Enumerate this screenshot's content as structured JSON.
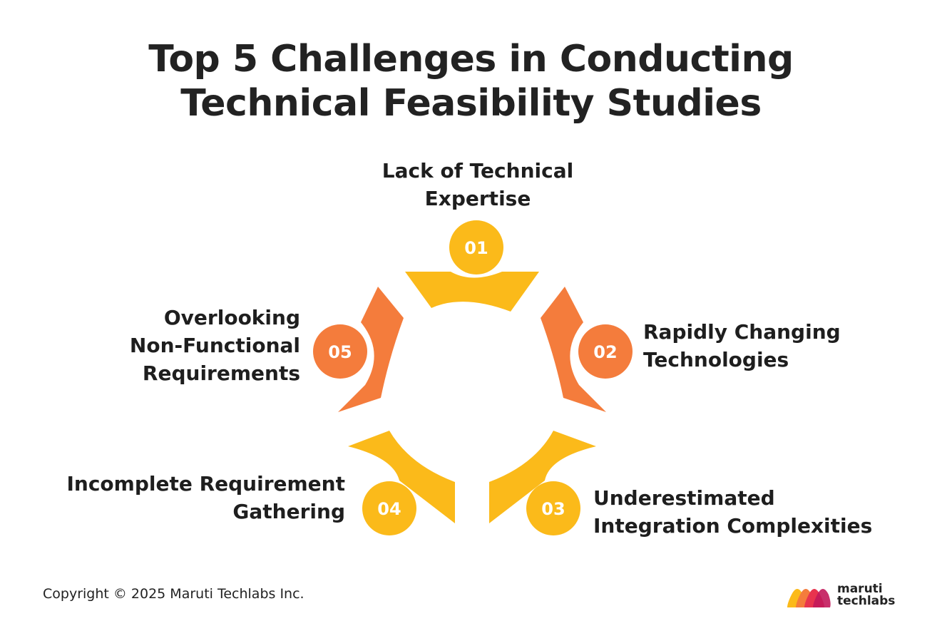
{
  "title": {
    "line1": "Top 5 Challenges in Conducting",
    "line2": "Technical Feasibility Studies"
  },
  "colors": {
    "yellow": "#FBBA1A",
    "orange": "#F47C3C",
    "text": "#1e1e1e",
    "background": "#ffffff"
  },
  "challenges": [
    {
      "number": "01",
      "label_lines": [
        "Lack of Technical",
        "Expertise"
      ],
      "color": "yellow"
    },
    {
      "number": "02",
      "label_lines": [
        "Rapidly Changing",
        "Technologies"
      ],
      "color": "orange"
    },
    {
      "number": "03",
      "label_lines": [
        "Underestimated",
        "Integration Complexities"
      ],
      "color": "yellow"
    },
    {
      "number": "04",
      "label_lines": [
        "Incomplete Requirement",
        "Gathering"
      ],
      "color": "yellow"
    },
    {
      "number": "05",
      "label_lines": [
        "Overlooking",
        "Non-Functional",
        "Requirements"
      ],
      "color": "orange"
    }
  ],
  "footer": {
    "copyright": "Copyright © 2025 Maruti Techlabs Inc."
  },
  "logo": {
    "line1": "maruti",
    "line2": "techlabs"
  }
}
